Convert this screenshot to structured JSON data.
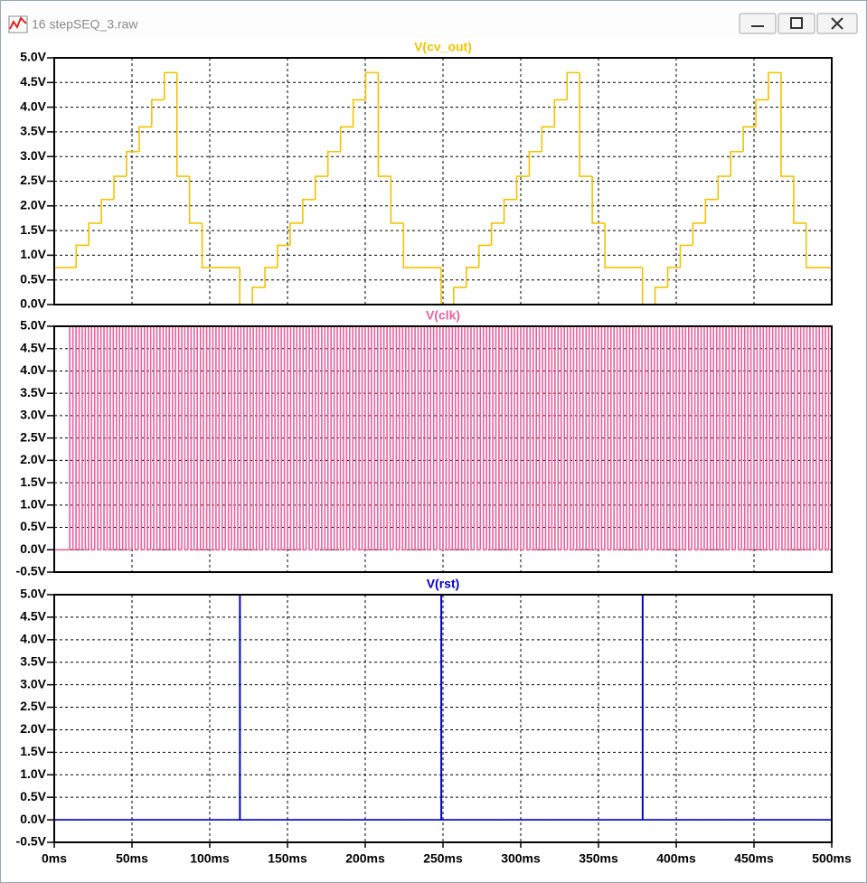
{
  "window_title": "16 stepSEQ_3.raw",
  "chart_data": [
    {
      "type": "line",
      "drawstyle": "steps-post",
      "title": "V(cv_out)",
      "color": "#f2c200",
      "grid": true,
      "xlim": [
        0,
        500
      ],
      "ylim": [
        0,
        5
      ],
      "yticks": [
        {
          "value": 0,
          "label": "0.0V"
        },
        {
          "value": 0.5,
          "label": "0.5V"
        },
        {
          "value": 1,
          "label": "1.0V"
        },
        {
          "value": 1.5,
          "label": "1.5V"
        },
        {
          "value": 2,
          "label": "2.0V"
        },
        {
          "value": 2.5,
          "label": "2.5V"
        },
        {
          "value": 3,
          "label": "3.0V"
        },
        {
          "value": 3.5,
          "label": "3.5V"
        },
        {
          "value": 4,
          "label": "4.0V"
        },
        {
          "value": 4.5,
          "label": "4.5V"
        },
        {
          "value": 5,
          "label": "5.0V"
        }
      ],
      "x": [
        0,
        14.1,
        22.2,
        30.3,
        38.4,
        46.5,
        54.6,
        62.7,
        70.8,
        78.9,
        87,
        95.1,
        119.3,
        127.4,
        135.5,
        143.6,
        151.7,
        159.8,
        167.9,
        176,
        184.1,
        192.2,
        200.3,
        208.4,
        216.5,
        224.6,
        248.8,
        256.9,
        265,
        273.1,
        281.2,
        289.3,
        297.4,
        305.5,
        313.6,
        321.7,
        329.8,
        337.9,
        346,
        354.1,
        378.3,
        386.4,
        394.5,
        402.6,
        410.7,
        418.8,
        426.9,
        435,
        443.1,
        451.2,
        459.3,
        467.4,
        475.5,
        483.6
      ],
      "values": [
        0.75,
        1.2,
        1.65,
        2.13,
        2.6,
        3.1,
        3.6,
        4.15,
        4.7,
        2.6,
        1.65,
        0.75,
        0,
        0.35,
        0.75,
        1.2,
        1.65,
        2.13,
        2.6,
        3.1,
        3.6,
        4.15,
        4.7,
        2.6,
        1.65,
        0.75,
        0,
        0.35,
        0.75,
        1.2,
        1.65,
        2.13,
        2.6,
        3.1,
        3.6,
        4.15,
        4.7,
        2.6,
        1.65,
        0.75,
        0,
        0.35,
        0.75,
        1.2,
        1.65,
        2.13,
        2.6,
        3.1,
        3.6,
        4.15,
        4.7,
        2.6,
        1.65,
        0.75
      ]
    },
    {
      "type": "line",
      "drawstyle": "steps-post",
      "title": "V(clk)",
      "color": "#e8609c",
      "grid": true,
      "xlim": [
        0,
        500
      ],
      "ylim": [
        -0.5,
        5
      ],
      "yticks": [
        {
          "value": -0.5,
          "label": "-0.5V"
        },
        {
          "value": 0,
          "label": "0.0V"
        },
        {
          "value": 0.5,
          "label": "0.5V"
        },
        {
          "value": 1,
          "label": "1.0V"
        },
        {
          "value": 1.5,
          "label": "1.5V"
        },
        {
          "value": 2,
          "label": "2.0V"
        },
        {
          "value": 2.5,
          "label": "2.5V"
        },
        {
          "value": 3,
          "label": "3.0V"
        },
        {
          "value": 3.5,
          "label": "3.5V"
        },
        {
          "value": 4,
          "label": "4.0V"
        },
        {
          "value": 4.5,
          "label": "4.5V"
        },
        {
          "value": 5,
          "label": "5.0V"
        }
      ],
      "x": [
        0,
        10,
        12,
        14,
        16,
        18,
        20,
        22,
        24,
        26,
        28,
        30,
        32,
        34,
        36,
        38,
        40,
        42,
        44,
        46,
        48,
        50,
        52,
        54,
        56,
        58,
        60,
        62,
        64,
        66,
        68,
        70,
        72,
        74,
        76,
        78,
        80,
        82,
        84,
        86,
        88,
        90,
        92,
        94,
        96,
        98,
        100,
        102,
        104,
        106,
        108,
        110,
        112,
        114,
        116,
        118,
        120,
        122,
        124,
        126,
        128,
        130,
        132,
        134,
        136,
        138,
        140,
        142,
        144,
        146,
        148,
        150,
        152,
        154,
        156,
        158,
        160,
        162,
        164,
        166,
        168,
        170,
        172,
        174,
        176,
        178,
        180,
        182,
        184,
        186,
        188,
        190,
        192,
        194,
        196,
        198,
        200,
        202,
        204,
        206,
        208,
        210,
        212,
        214,
        216,
        218,
        220,
        222,
        224,
        226,
        228,
        230,
        232,
        234,
        236,
        238,
        240,
        242,
        244,
        246,
        248,
        250,
        252,
        254,
        256,
        258,
        260,
        262,
        264,
        266,
        268,
        270,
        272,
        274,
        276,
        278,
        280,
        282,
        284,
        286,
        288,
        290,
        292,
        294,
        296,
        298,
        300,
        302,
        304,
        306,
        308,
        310,
        312,
        314,
        316,
        318,
        320,
        322,
        324,
        326,
        328,
        330,
        332,
        334,
        336,
        338,
        340,
        342,
        344,
        346,
        348,
        350,
        352,
        354,
        356,
        358,
        360,
        362,
        364,
        366,
        368,
        370,
        372,
        374,
        376,
        378,
        380,
        382,
        384,
        386,
        388,
        390,
        392,
        394,
        396,
        398,
        400,
        402,
        404,
        406,
        408,
        410,
        412,
        414,
        416,
        418,
        420,
        422,
        424,
        426,
        428,
        430,
        432,
        434,
        436,
        438,
        440,
        442,
        444,
        446,
        448,
        450,
        452,
        454,
        456,
        458,
        460,
        462,
        464,
        466,
        468,
        470,
        472,
        474,
        476,
        478,
        480,
        482,
        484,
        486,
        488,
        490,
        492,
        494,
        496,
        498
      ],
      "values": [
        0,
        5,
        0,
        5,
        0,
        5,
        0,
        5,
        0,
        5,
        0,
        5,
        0,
        5,
        0,
        5,
        0,
        5,
        0,
        5,
        0,
        5,
        0,
        5,
        0,
        5,
        0,
        5,
        0,
        5,
        0,
        5,
        0,
        5,
        0,
        5,
        0,
        5,
        0,
        5,
        0,
        5,
        0,
        5,
        0,
        5,
        0,
        5,
        0,
        5,
        0,
        5,
        0,
        5,
        0,
        5,
        0,
        5,
        0,
        5,
        0,
        5,
        0,
        5,
        0,
        5,
        0,
        5,
        0,
        5,
        0,
        5,
        0,
        5,
        0,
        5,
        0,
        5,
        0,
        5,
        0,
        5,
        0,
        5,
        0,
        5,
        0,
        5,
        0,
        5,
        0,
        5,
        0,
        5,
        0,
        5,
        0,
        5,
        0,
        5,
        0,
        5,
        0,
        5,
        0,
        5,
        0,
        5,
        0,
        5,
        0,
        5,
        0,
        5,
        0,
        5,
        0,
        5,
        0,
        5,
        0,
        5,
        0,
        5,
        0,
        5,
        0,
        5,
        0,
        5,
        0,
        5,
        0,
        5,
        0,
        5,
        0,
        5,
        0,
        5,
        0,
        5,
        0,
        5,
        0,
        5,
        0,
        5,
        0,
        5,
        0,
        5,
        0,
        5,
        0,
        5,
        0,
        5,
        0,
        5,
        0,
        5,
        0,
        5,
        0,
        5,
        0,
        5,
        0,
        5,
        0,
        5,
        0,
        5,
        0,
        5,
        0,
        5,
        0,
        5,
        0,
        5,
        0,
        5,
        0,
        5,
        0,
        5,
        0,
        5,
        0,
        5,
        0,
        5,
        0,
        5,
        0,
        5,
        0,
        5,
        0,
        5,
        0,
        5,
        0,
        5,
        0,
        5,
        0,
        5,
        0,
        5,
        0,
        5,
        0,
        5,
        0,
        5,
        0,
        5,
        0,
        5,
        0,
        5,
        0,
        5,
        0,
        5,
        0,
        5,
        0,
        5,
        0,
        5,
        0,
        5,
        0,
        5,
        0,
        5,
        0,
        5,
        0,
        5,
        0,
        5
      ]
    },
    {
      "type": "line",
      "drawstyle": "steps-post",
      "title": "V(rst)",
      "color": "#0000c8",
      "grid": true,
      "xlim": [
        0,
        500
      ],
      "ylim": [
        -0.5,
        5
      ],
      "xticks": [
        {
          "value": 0,
          "label": "0ms"
        },
        {
          "value": 50,
          "label": "50ms"
        },
        {
          "value": 100,
          "label": "100ms"
        },
        {
          "value": 150,
          "label": "150ms"
        },
        {
          "value": 200,
          "label": "200ms"
        },
        {
          "value": 250,
          "label": "250ms"
        },
        {
          "value": 300,
          "label": "300ms"
        },
        {
          "value": 350,
          "label": "350ms"
        },
        {
          "value": 400,
          "label": "400ms"
        },
        {
          "value": 450,
          "label": "450ms"
        },
        {
          "value": 500,
          "label": "500ms"
        }
      ],
      "yticks": [
        {
          "value": -0.5,
          "label": "-0.5V"
        },
        {
          "value": 0,
          "label": "0.0V"
        },
        {
          "value": 0.5,
          "label": "0.5V"
        },
        {
          "value": 1,
          "label": "1.0V"
        },
        {
          "value": 1.5,
          "label": "1.5V"
        },
        {
          "value": 2,
          "label": "2.0V"
        },
        {
          "value": 2.5,
          "label": "2.5V"
        },
        {
          "value": 3,
          "label": "3.0V"
        },
        {
          "value": 3.5,
          "label": "3.5V"
        },
        {
          "value": 4,
          "label": "4.0V"
        },
        {
          "value": 4.5,
          "label": "4.5V"
        },
        {
          "value": 5,
          "label": "5.0V"
        }
      ],
      "x": [
        0,
        119.3,
        119.5,
        248.8,
        249,
        378.3,
        378.5
      ],
      "values": [
        0,
        5,
        0,
        5,
        0,
        5,
        0
      ]
    }
  ]
}
